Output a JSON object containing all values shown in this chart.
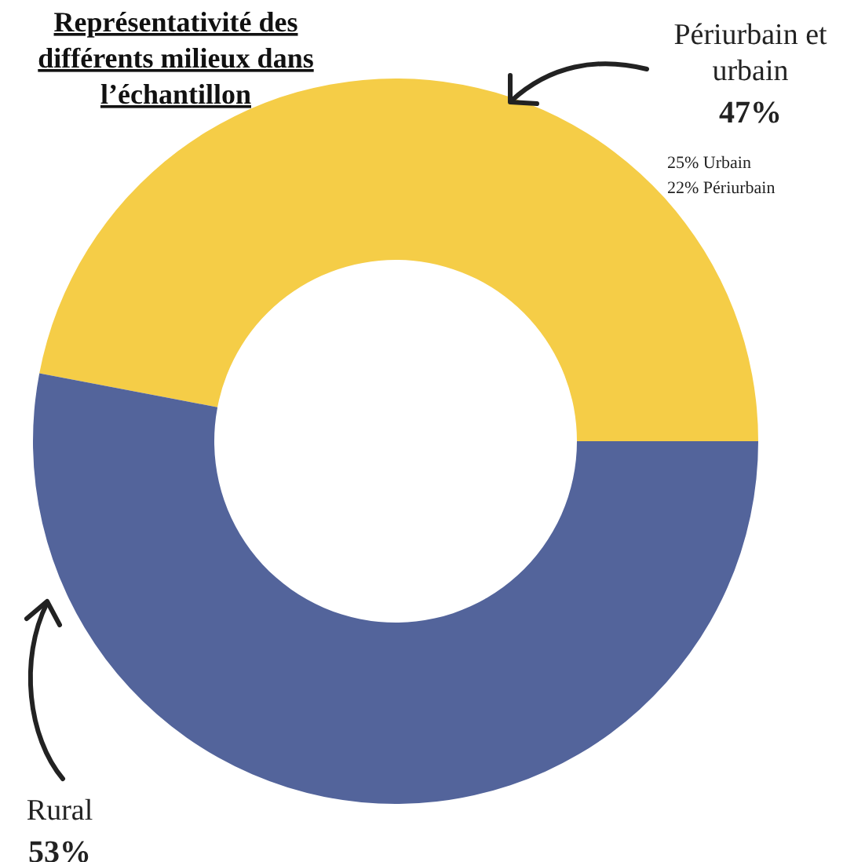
{
  "chart_data": {
    "type": "donut",
    "title": "Représentativité des différents milieux dans l’échantillon",
    "categories": [
      "Périurbain et urbain",
      "Rural"
    ],
    "values": [
      47,
      53
    ],
    "colors": [
      "#f5cd47",
      "#53649b"
    ],
    "value_labels": [
      "47%",
      "53%"
    ],
    "annotations": [
      "25% Urbain",
      "22% Périurbain"
    ]
  }
}
